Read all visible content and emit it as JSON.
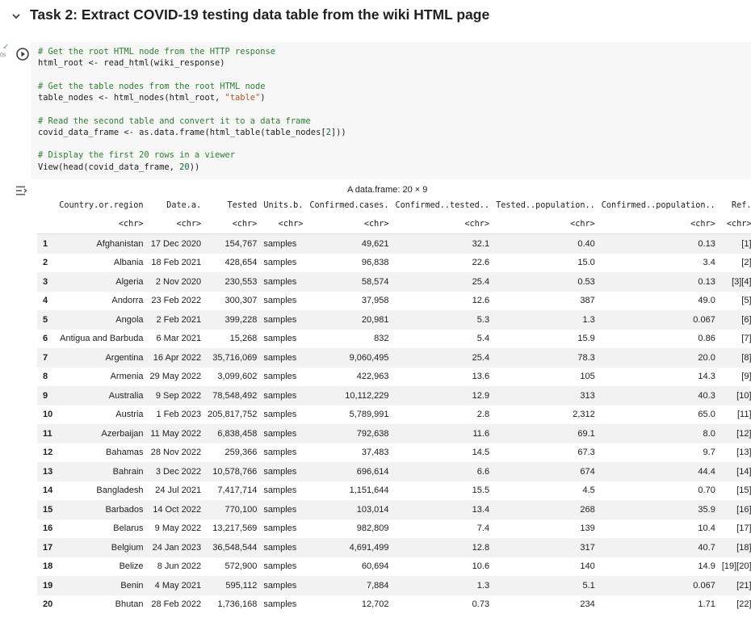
{
  "section": {
    "title": "Task 2: Extract COVID-19 testing data table from the wiki HTML page",
    "status_check": "✓",
    "status_time": "0s"
  },
  "code": {
    "lines": [
      {
        "k": "comment",
        "text": "# Get the root HTML node from the HTTP response"
      },
      {
        "k": "code",
        "parts": [
          {
            "t": "plain",
            "v": "html_root <- read_html(wiki_response)"
          }
        ]
      },
      {
        "k": "blank"
      },
      {
        "k": "comment",
        "text": "# Get the table nodes from the root HTML node"
      },
      {
        "k": "code",
        "parts": [
          {
            "t": "plain",
            "v": "table_nodes <- html_nodes(html_root, "
          },
          {
            "t": "str",
            "v": "\"table\""
          },
          {
            "t": "plain",
            "v": ")"
          }
        ]
      },
      {
        "k": "blank"
      },
      {
        "k": "comment",
        "text": "# Read the second table and convert it to a data frame"
      },
      {
        "k": "code",
        "parts": [
          {
            "t": "plain",
            "v": "covid_data_frame <- as.data.frame(html_table(table_nodes["
          },
          {
            "t": "num",
            "v": "2"
          },
          {
            "t": "plain",
            "v": "]))"
          }
        ]
      },
      {
        "k": "blank"
      },
      {
        "k": "comment",
        "text": "# Display the first 20 rows in a viewer"
      },
      {
        "k": "code",
        "parts": [
          {
            "t": "plain",
            "v": "View(head(covid_data_frame, "
          },
          {
            "t": "num",
            "v": "20"
          },
          {
            "t": "plain",
            "v": "))"
          }
        ]
      }
    ]
  },
  "output": {
    "caption": "A data.frame: 20 × 9",
    "columns": [
      "Country.or.region",
      "Date.a.",
      "Tested",
      "Units.b.",
      "Confirmed.cases.",
      "Confirmed..tested..",
      "Tested..population..",
      "Confirmed..population..",
      "Ref."
    ],
    "types": [
      "<chr>",
      "<chr>",
      "<chr>",
      "<chr>",
      "<chr>",
      "<chr>",
      "<chr>",
      "<chr>",
      "<chr>"
    ],
    "rows": [
      [
        "1",
        "Afghanistan",
        "17 Dec 2020",
        "154,767",
        "samples",
        "49,621",
        "32.1",
        "0.40",
        "0.13",
        "[1]"
      ],
      [
        "2",
        "Albania",
        "18 Feb 2021",
        "428,654",
        "samples",
        "96,838",
        "22.6",
        "15.0",
        "3.4",
        "[2]"
      ],
      [
        "3",
        "Algeria",
        "2 Nov 2020",
        "230,553",
        "samples",
        "58,574",
        "25.4",
        "0.53",
        "0.13",
        "[3][4]"
      ],
      [
        "4",
        "Andorra",
        "23 Feb 2022",
        "300,307",
        "samples",
        "37,958",
        "12.6",
        "387",
        "49.0",
        "[5]"
      ],
      [
        "5",
        "Angola",
        "2 Feb 2021",
        "399,228",
        "samples",
        "20,981",
        "5.3",
        "1.3",
        "0.067",
        "[6]"
      ],
      [
        "6",
        "Antigua and Barbuda",
        "6 Mar 2021",
        "15,268",
        "samples",
        "832",
        "5.4",
        "15.9",
        "0.86",
        "[7]"
      ],
      [
        "7",
        "Argentina",
        "16 Apr 2022",
        "35,716,069",
        "samples",
        "9,060,495",
        "25.4",
        "78.3",
        "20.0",
        "[8]"
      ],
      [
        "8",
        "Armenia",
        "29 May 2022",
        "3,099,602",
        "samples",
        "422,963",
        "13.6",
        "105",
        "14.3",
        "[9]"
      ],
      [
        "9",
        "Australia",
        "9 Sep 2022",
        "78,548,492",
        "samples",
        "10,112,229",
        "12.9",
        "313",
        "40.3",
        "[10]"
      ],
      [
        "10",
        "Austria",
        "1 Feb 2023",
        "205,817,752",
        "samples",
        "5,789,991",
        "2.8",
        "2,312",
        "65.0",
        "[11]"
      ],
      [
        "11",
        "Azerbaijan",
        "11 May 2022",
        "6,838,458",
        "samples",
        "792,638",
        "11.6",
        "69.1",
        "8.0",
        "[12]"
      ],
      [
        "12",
        "Bahamas",
        "28 Nov 2022",
        "259,366",
        "samples",
        "37,483",
        "14.5",
        "67.3",
        "9.7",
        "[13]"
      ],
      [
        "13",
        "Bahrain",
        "3 Dec 2022",
        "10,578,766",
        "samples",
        "696,614",
        "6.6",
        "674",
        "44.4",
        "[14]"
      ],
      [
        "14",
        "Bangladesh",
        "24 Jul 2021",
        "7,417,714",
        "samples",
        "1,151,644",
        "15.5",
        "4.5",
        "0.70",
        "[15]"
      ],
      [
        "15",
        "Barbados",
        "14 Oct 2022",
        "770,100",
        "samples",
        "103,014",
        "13.4",
        "268",
        "35.9",
        "[16]"
      ],
      [
        "16",
        "Belarus",
        "9 May 2022",
        "13,217,569",
        "samples",
        "982,809",
        "7.4",
        "139",
        "10.4",
        "[17]"
      ],
      [
        "17",
        "Belgium",
        "24 Jan 2023",
        "36,548,544",
        "samples",
        "4,691,499",
        "12.8",
        "317",
        "40.7",
        "[18]"
      ],
      [
        "18",
        "Belize",
        "8 Jun 2022",
        "572,900",
        "samples",
        "60,694",
        "10.6",
        "140",
        "14.9",
        "[19][20]"
      ],
      [
        "19",
        "Benin",
        "4 May 2021",
        "595,112",
        "samples",
        "7,884",
        "1.3",
        "5.1",
        "0.067",
        "[21]"
      ],
      [
        "20",
        "Bhutan",
        "28 Feb 2022",
        "1,736,168",
        "samples",
        "12,702",
        "0.73",
        "234",
        "1.71",
        "[22]"
      ]
    ]
  }
}
